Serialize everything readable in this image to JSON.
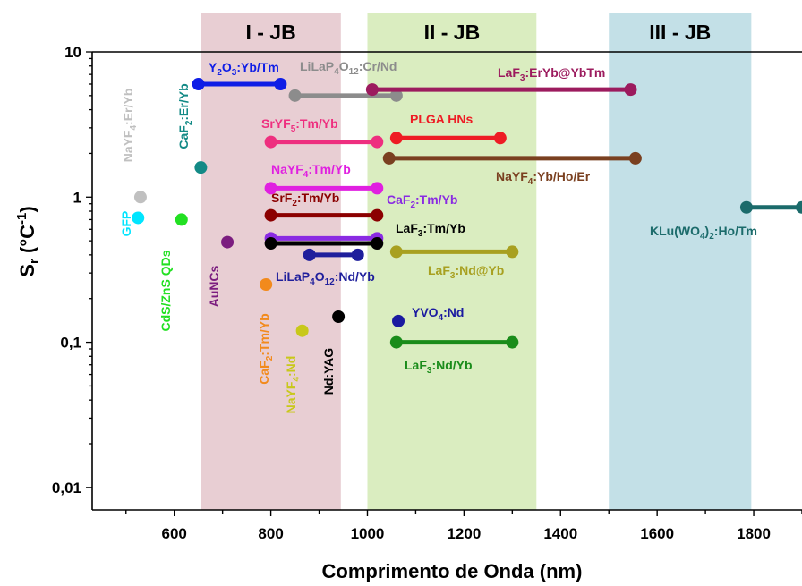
{
  "chart_data": {
    "type": "scatter",
    "title": "",
    "xlabel": "Comprimento de Onda (nm)",
    "ylabel_main": "S",
    "ylabel_sub": "r",
    "ylabel_unit_open": " (°C",
    "ylabel_unit_sup": "-1",
    "ylabel_unit_close": ")",
    "xlim": [
      430,
      1900
    ],
    "ylim": [
      0.007,
      10
    ],
    "yscale": "log",
    "xticks": [
      600,
      800,
      1000,
      1200,
      1400,
      1600,
      1800
    ],
    "xticklabels": [
      "600",
      "800",
      "1000",
      "1200",
      "1400",
      "1600",
      "1800"
    ],
    "yticks": [
      0.01,
      0.1,
      1,
      10
    ],
    "yticklabels": [
      "0,01",
      "0,1",
      "1",
      "10"
    ],
    "bands": [
      {
        "label": "I - JB",
        "x0": 655,
        "x1": 945,
        "color": "#c98b95"
      },
      {
        "label": "II - JB",
        "x0": 1000,
        "x1": 1350,
        "color": "#a6d46a"
      },
      {
        "label": "III - JB",
        "x0": 1500,
        "x1": 1795,
        "color": "#6fb6c6"
      }
    ],
    "series": [
      {
        "label_parts": [
          [
            "NaYF",
            ""
          ],
          [
            "4",
            "sub"
          ],
          [
            ":Er/Yb",
            ""
          ]
        ],
        "color": "#c0c0c0",
        "x": [
          530
        ],
        "y": [
          1.0
        ]
      },
      {
        "label_parts": [
          [
            "CaF",
            ""
          ],
          [
            "2",
            "sub"
          ],
          [
            ":Er/Yb",
            ""
          ]
        ],
        "color": "#138a86",
        "x": [
          655
        ],
        "y": [
          1.6
        ]
      },
      {
        "label_parts": [
          [
            "GFP",
            ""
          ]
        ],
        "color": "#00e5ff",
        "x": [
          525
        ],
        "y": [
          0.72
        ]
      },
      {
        "label_parts": [
          [
            "CdS/ZnS QDs",
            ""
          ]
        ],
        "color": "#22e022",
        "x": [
          615
        ],
        "y": [
          0.7
        ]
      },
      {
        "label_parts": [
          [
            "AuNCs",
            ""
          ]
        ],
        "color": "#7b1d7f",
        "x": [
          710
        ],
        "y": [
          0.49
        ]
      },
      {
        "label_parts": [
          [
            "CaF",
            ""
          ],
          [
            "2",
            "sub"
          ],
          [
            ":Tm/Yb",
            ""
          ]
        ],
        "color": "#f28a1c",
        "x": [
          790
        ],
        "y": [
          0.25
        ]
      },
      {
        "label_parts": [
          [
            "NaYF",
            ""
          ],
          [
            "4",
            "sub"
          ],
          [
            ":Nd",
            ""
          ]
        ],
        "color": "#c8c81a",
        "x": [
          865
        ],
        "y": [
          0.12
        ]
      },
      {
        "label_parts": [
          [
            "Nd:YAG",
            ""
          ]
        ],
        "color": "#000000",
        "x": [
          940
        ],
        "y": [
          0.15
        ]
      },
      {
        "label_parts": [
          [
            "YVO",
            ""
          ],
          [
            "4",
            "sub"
          ],
          [
            ":Nd",
            ""
          ]
        ],
        "color": "#1a1aa0",
        "x": [
          1064
        ],
        "y": [
          0.14
        ]
      },
      {
        "label_parts": [
          [
            "Y",
            ""
          ],
          [
            "2",
            "sub"
          ],
          [
            "O",
            ""
          ],
          [
            "3",
            "sub"
          ],
          [
            ":Yb/Tm",
            ""
          ]
        ],
        "color": "#0f1ee6",
        "x": [
          650,
          820
        ],
        "y": [
          6.0,
          6.0
        ]
      },
      {
        "label_parts": [
          [
            "LiLaP",
            ""
          ],
          [
            "4",
            "sub"
          ],
          [
            "O",
            ""
          ],
          [
            "12",
            "sub"
          ],
          [
            ":Cr/Nd",
            ""
          ]
        ],
        "color": "#8c8c8c",
        "x": [
          850,
          1060
        ],
        "y": [
          5.0,
          5.0
        ]
      },
      {
        "label_parts": [
          [
            "LaF",
            ""
          ],
          [
            "3",
            "sub"
          ],
          [
            ":ErYb@YbTm",
            ""
          ]
        ],
        "color": "#9c1b5e",
        "x": [
          1010,
          1545
        ],
        "y": [
          5.5,
          5.5
        ]
      },
      {
        "label_parts": [
          [
            "SrYF",
            ""
          ],
          [
            "5",
            "sub"
          ],
          [
            ":Tm/Yb",
            ""
          ]
        ],
        "color": "#ee2f7f",
        "x": [
          800,
          1020
        ],
        "y": [
          2.4,
          2.4
        ]
      },
      {
        "label_parts": [
          [
            "PLGA HNs",
            ""
          ]
        ],
        "color": "#ee1c24",
        "x": [
          1060,
          1275
        ],
        "y": [
          2.55,
          2.55
        ]
      },
      {
        "label_parts": [
          [
            "NaYF",
            ""
          ],
          [
            "4",
            "sub"
          ],
          [
            ":Yb/Ho/Er",
            ""
          ]
        ],
        "color": "#7a4020",
        "x": [
          1045,
          1555
        ],
        "y": [
          1.85,
          1.85
        ]
      },
      {
        "label_parts": [
          [
            "NaYF",
            ""
          ],
          [
            "4",
            "sub"
          ],
          [
            ":Tm/Yb",
            ""
          ]
        ],
        "color": "#e020e0",
        "x": [
          800,
          1020
        ],
        "y": [
          1.15,
          1.15
        ]
      },
      {
        "label_parts": [
          [
            "SrF",
            ""
          ],
          [
            "2",
            "sub"
          ],
          [
            ":Tm/Yb",
            ""
          ]
        ],
        "color": "#8b0000",
        "x": [
          800,
          1020
        ],
        "y": [
          0.75,
          0.75
        ]
      },
      {
        "label_parts": [
          [
            "CaF",
            ""
          ],
          [
            "2",
            "sub"
          ],
          [
            ":Tm/Yb",
            ""
          ]
        ],
        "color": "#8a2be2",
        "x": [
          800,
          1020
        ],
        "y": [
          0.52,
          0.52
        ]
      },
      {
        "label_parts": [
          [
            "LaF",
            ""
          ],
          [
            "3",
            "sub"
          ],
          [
            ":Tm/Yb",
            ""
          ]
        ],
        "color": "#000000",
        "x": [
          800,
          1020
        ],
        "y": [
          0.48,
          0.48
        ]
      },
      {
        "label_parts": [
          [
            "LiLaP",
            ""
          ],
          [
            "4",
            "sub"
          ],
          [
            "O",
            ""
          ],
          [
            "12",
            "sub"
          ],
          [
            ":Nd/Yb",
            ""
          ]
        ],
        "color": "#1f1f9c",
        "x": [
          880,
          980
        ],
        "y": [
          0.4,
          0.4
        ]
      },
      {
        "label_parts": [
          [
            "LaF",
            ""
          ],
          [
            "3",
            "sub"
          ],
          [
            ":Nd@Yb",
            ""
          ]
        ],
        "color": "#a8a020",
        "x": [
          1060,
          1300
        ],
        "y": [
          0.42,
          0.42
        ]
      },
      {
        "label_parts": [
          [
            "LaF",
            ""
          ],
          [
            "3",
            "sub"
          ],
          [
            ":Nd/Yb",
            ""
          ]
        ],
        "color": "#1a8c1a",
        "x": [
          1060,
          1300
        ],
        "y": [
          0.1,
          0.1
        ]
      },
      {
        "label_parts": [
          [
            "KLu(WO",
            ""
          ],
          [
            "4",
            "sub"
          ],
          [
            ")",
            ""
          ],
          [
            "2",
            "sub"
          ],
          [
            ":Ho/Tm",
            ""
          ]
        ],
        "color": "#1b6b6b",
        "x": [
          1785,
          1900
        ],
        "y": [
          0.85,
          0.85
        ]
      }
    ]
  }
}
